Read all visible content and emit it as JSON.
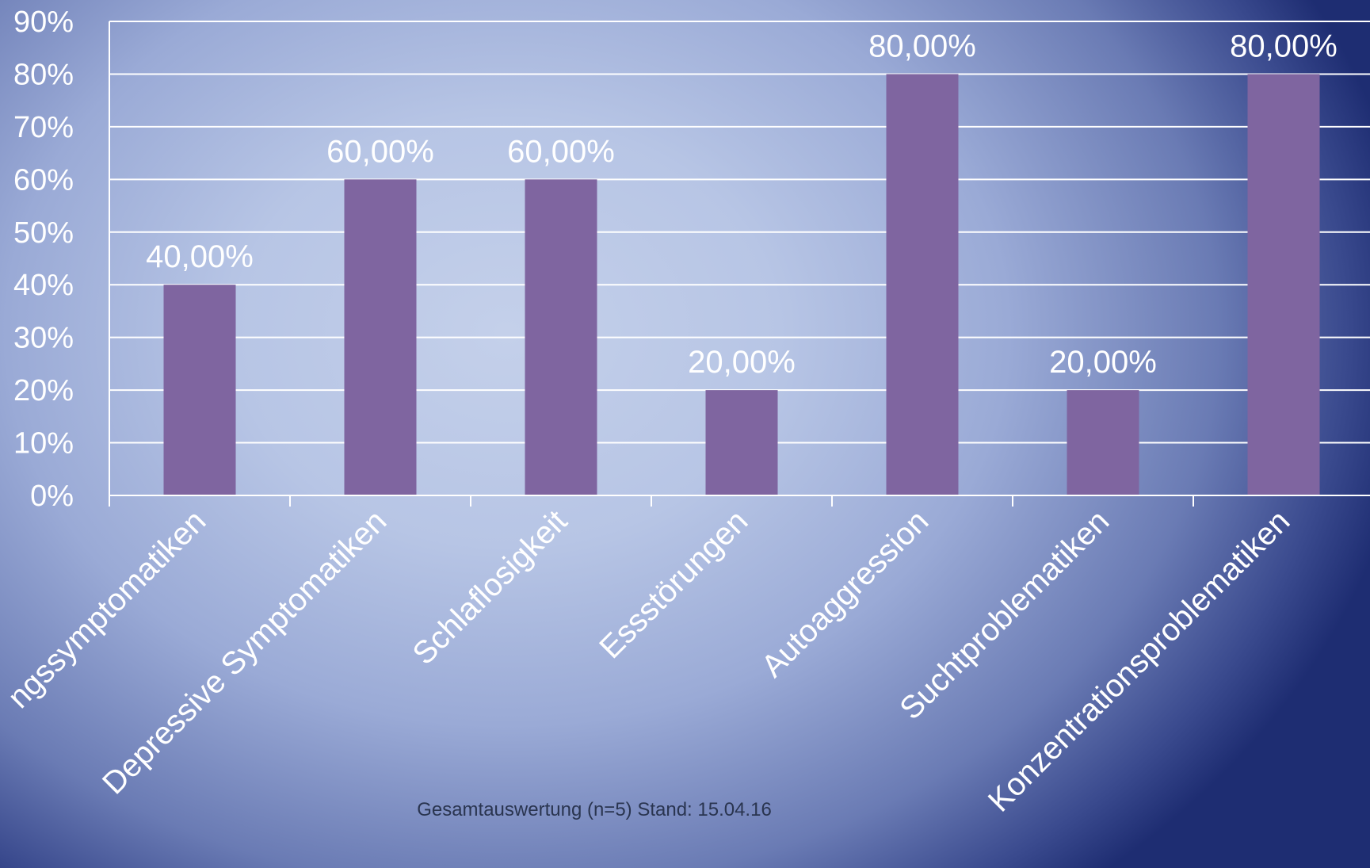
{
  "chart_data": {
    "type": "bar",
    "categories": [
      "ngssymptomatiken",
      "Depressive Symptomatiken",
      "Schlaflosigkeit",
      "Essstörungen",
      "Autoaggression",
      "Suchtproblematiken",
      "Konzentrationsproblematiken"
    ],
    "values": [
      40,
      60,
      60,
      20,
      80,
      20,
      80
    ],
    "value_labels": [
      "40,00%",
      "60,00%",
      "60,00%",
      "20,00%",
      "80,00%",
      "20,00%",
      "80,00%"
    ],
    "ylim": [
      0,
      90
    ],
    "yticks": [
      "0%",
      "10%",
      "20%",
      "30%",
      "40%",
      "50%",
      "60%",
      "70%",
      "80%",
      "90%"
    ],
    "grid": true,
    "bar_color": "#7f65a0"
  },
  "footnote": "Gesamtauswertung (n=5) Stand: 15.04.16"
}
